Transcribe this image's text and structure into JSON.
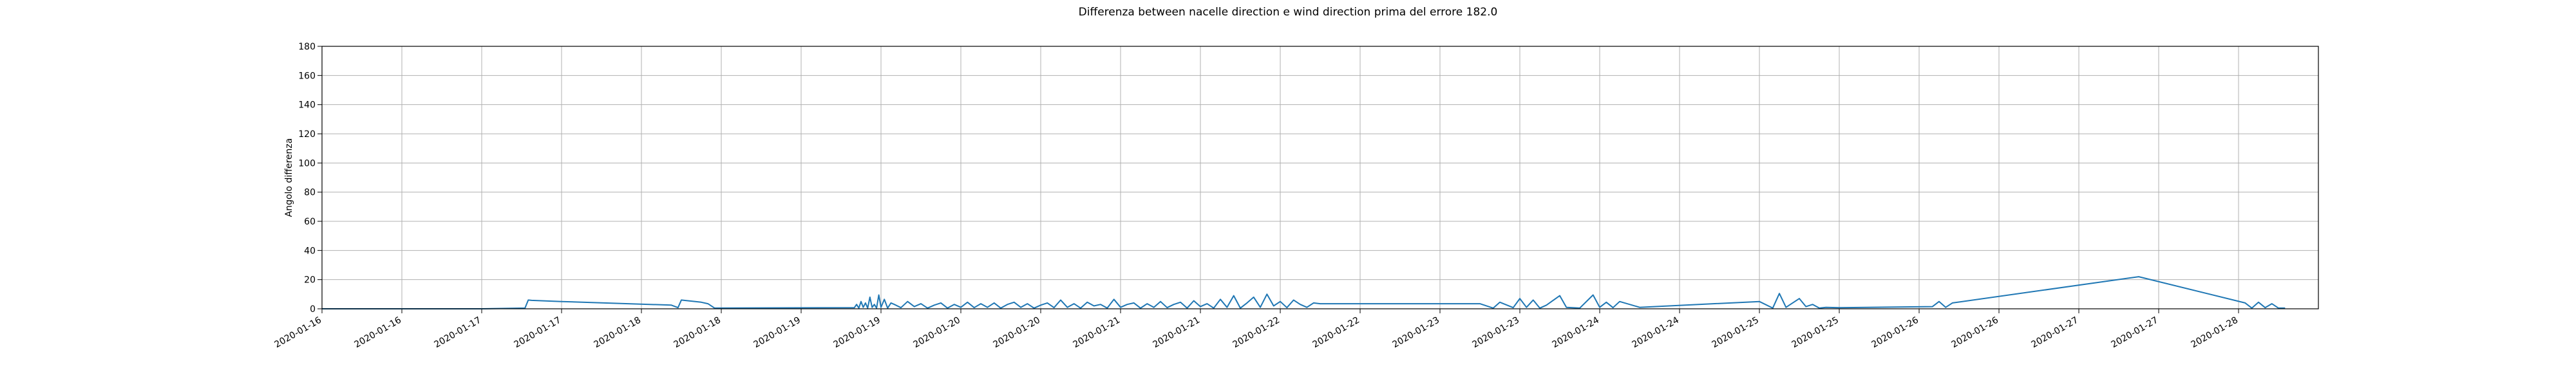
{
  "chart_data": {
    "type": "line",
    "title": "Differenza between nacelle direction e wind direction prima del errore 182.0",
    "xlabel": "",
    "ylabel": "Angolo differenza",
    "ylim": [
      0,
      180
    ],
    "yticks": [
      0,
      20,
      40,
      60,
      80,
      100,
      120,
      140,
      160,
      180
    ],
    "xlim": [
      "2020-01-15 18:00",
      "2020-01-28 06:00"
    ],
    "xticks": [
      {
        "t": "2020-01-15 18:00",
        "label": "2020-01-16"
      },
      {
        "t": "2020-01-16 06:00",
        "label": "2020-01-16"
      },
      {
        "t": "2020-01-16 18:00",
        "label": "2020-01-17"
      },
      {
        "t": "2020-01-17 06:00",
        "label": "2020-01-17"
      },
      {
        "t": "2020-01-17 18:00",
        "label": "2020-01-18"
      },
      {
        "t": "2020-01-18 06:00",
        "label": "2020-01-18"
      },
      {
        "t": "2020-01-18 18:00",
        "label": "2020-01-19"
      },
      {
        "t": "2020-01-19 06:00",
        "label": "2020-01-19"
      },
      {
        "t": "2020-01-19 18:00",
        "label": "2020-01-20"
      },
      {
        "t": "2020-01-20 06:00",
        "label": "2020-01-20"
      },
      {
        "t": "2020-01-20 18:00",
        "label": "2020-01-21"
      },
      {
        "t": "2020-01-21 06:00",
        "label": "2020-01-21"
      },
      {
        "t": "2020-01-21 18:00",
        "label": "2020-01-22"
      },
      {
        "t": "2020-01-22 06:00",
        "label": "2020-01-22"
      },
      {
        "t": "2020-01-22 18:00",
        "label": "2020-01-23"
      },
      {
        "t": "2020-01-23 06:00",
        "label": "2020-01-23"
      },
      {
        "t": "2020-01-23 18:00",
        "label": "2020-01-24"
      },
      {
        "t": "2020-01-24 06:00",
        "label": "2020-01-24"
      },
      {
        "t": "2020-01-24 18:00",
        "label": "2020-01-25"
      },
      {
        "t": "2020-01-25 06:00",
        "label": "2020-01-25"
      },
      {
        "t": "2020-01-25 18:00",
        "label": "2020-01-26"
      },
      {
        "t": "2020-01-26 06:00",
        "label": "2020-01-26"
      },
      {
        "t": "2020-01-26 18:00",
        "label": "2020-01-27"
      },
      {
        "t": "2020-01-27 06:00",
        "label": "2020-01-27"
      },
      {
        "t": "2020-01-27 18:00",
        "label": "2020-01-28"
      }
    ],
    "grid": true,
    "legend": "none",
    "colors": {
      "series": "#1f77b4",
      "grid": "#b0b0b0"
    },
    "series": [
      {
        "x": [
          "2020-01-15 18:00",
          "2020-01-16 18:00",
          "2020-01-17 00:30",
          "2020-01-17 01:00",
          "2020-01-17 01:30",
          "2020-01-17 03:00",
          "2020-01-17 06:00",
          "2020-01-17 22:30",
          "2020-01-17 23:30",
          "2020-01-18 00:00",
          "2020-01-18 01:00",
          "2020-01-18 03:00",
          "2020-01-18 04:00",
          "2020-01-18 05:00",
          "2020-01-19 02:00",
          "2020-01-19 02:20",
          "2020-01-19 02:40",
          "2020-01-19 03:00",
          "2020-01-19 03:20",
          "2020-01-19 03:40",
          "2020-01-19 04:00",
          "2020-01-19 04:20",
          "2020-01-19 04:40",
          "2020-01-19 05:00",
          "2020-01-19 05:20",
          "2020-01-19 05:40",
          "2020-01-19 06:00",
          "2020-01-19 06:30",
          "2020-01-19 07:00",
          "2020-01-19 07:30",
          "2020-01-19 08:00",
          "2020-01-19 09:00",
          "2020-01-19 10:00",
          "2020-01-19 11:00",
          "2020-01-19 12:00",
          "2020-01-19 13:00",
          "2020-01-19 14:00",
          "2020-01-19 15:00",
          "2020-01-19 16:00",
          "2020-01-19 17:00",
          "2020-01-19 18:00",
          "2020-01-19 19:00",
          "2020-01-19 20:00",
          "2020-01-19 21:00",
          "2020-01-19 22:00",
          "2020-01-19 23:00",
          "2020-01-20 00:00",
          "2020-01-20 01:00",
          "2020-01-20 02:00",
          "2020-01-20 03:00",
          "2020-01-20 04:00",
          "2020-01-20 05:00",
          "2020-01-20 06:00",
          "2020-01-20 07:00",
          "2020-01-20 08:00",
          "2020-01-20 09:00",
          "2020-01-20 10:00",
          "2020-01-20 11:00",
          "2020-01-20 12:00",
          "2020-01-20 13:00",
          "2020-01-20 14:00",
          "2020-01-20 15:00",
          "2020-01-20 16:00",
          "2020-01-20 17:00",
          "2020-01-20 18:00",
          "2020-01-20 19:00",
          "2020-01-20 20:00",
          "2020-01-20 21:00",
          "2020-01-20 22:00",
          "2020-01-20 23:00",
          "2020-01-21 00:00",
          "2020-01-21 01:00",
          "2020-01-21 02:00",
          "2020-01-21 03:00",
          "2020-01-21 04:00",
          "2020-01-21 05:00",
          "2020-01-21 06:00",
          "2020-01-21 07:00",
          "2020-01-21 08:00",
          "2020-01-21 09:00",
          "2020-01-21 10:00",
          "2020-01-21 11:00",
          "2020-01-21 12:00",
          "2020-01-21 13:00",
          "2020-01-21 14:00",
          "2020-01-21 15:00",
          "2020-01-21 16:00",
          "2020-01-21 17:00",
          "2020-01-21 18:00",
          "2020-01-21 19:00",
          "2020-01-21 20:00",
          "2020-01-21 21:00",
          "2020-01-21 22:00",
          "2020-01-21 23:00",
          "2020-01-22 00:00",
          "2020-01-22 20:00",
          "2020-01-23 00:00",
          "2020-01-23 02:00",
          "2020-01-23 03:00",
          "2020-01-23 05:00",
          "2020-01-23 06:00",
          "2020-01-23 07:00",
          "2020-01-23 08:00",
          "2020-01-23 09:00",
          "2020-01-23 10:00",
          "2020-01-23 12:00",
          "2020-01-23 13:00",
          "2020-01-23 15:00",
          "2020-01-23 17:00",
          "2020-01-23 18:00",
          "2020-01-23 19:00",
          "2020-01-23 20:00",
          "2020-01-23 21:00",
          "2020-01-24 00:00",
          "2020-01-24 18:00",
          "2020-01-24 20:00",
          "2020-01-24 21:00",
          "2020-01-24 22:00",
          "2020-01-25 00:00",
          "2020-01-25 01:00",
          "2020-01-25 02:00",
          "2020-01-25 03:00",
          "2020-01-25 04:00",
          "2020-01-25 06:00",
          "2020-01-25 20:00",
          "2020-01-25 21:00",
          "2020-01-25 22:00",
          "2020-01-25 23:00",
          "2020-01-27 03:00",
          "2020-01-27 19:00",
          "2020-01-27 20:00",
          "2020-01-27 21:00",
          "2020-01-27 22:00",
          "2020-01-27 23:00",
          "2020-01-28 00:00",
          "2020-01-28 01:00"
        ],
        "y": [
          0,
          0,
          0.5,
          6.0,
          5.8,
          5.5,
          5.0,
          2.5,
          0.8,
          6.0,
          5.5,
          4.5,
          3.5,
          0.5,
          0.8,
          3.0,
          0.5,
          5.0,
          1.0,
          4.0,
          0.5,
          8.0,
          1.0,
          3.0,
          0.5,
          9.5,
          1.0,
          6.5,
          0.5,
          4.0,
          3.0,
          0.8,
          5.0,
          1.5,
          3.5,
          0.5,
          2.5,
          4.0,
          0.5,
          3.0,
          1.0,
          4.5,
          0.8,
          3.5,
          1.0,
          4.0,
          0.5,
          3.0,
          4.5,
          1.0,
          3.5,
          0.5,
          2.5,
          4.0,
          0.8,
          6.0,
          1.0,
          3.5,
          0.5,
          4.5,
          2.0,
          3.0,
          0.5,
          6.5,
          1.0,
          3.0,
          4.0,
          0.5,
          3.5,
          1.0,
          5.0,
          0.8,
          3.0,
          4.5,
          0.5,
          5.5,
          1.5,
          3.5,
          0.5,
          6.5,
          1.0,
          9.0,
          0.5,
          4.0,
          8.0,
          1.0,
          10.0,
          2.0,
          5.0,
          0.8,
          6.0,
          3.0,
          1.0,
          4.0,
          3.5,
          3.5,
          3.5,
          0.5,
          4.5,
          0.8,
          7.0,
          1.0,
          6.0,
          0.5,
          2.5,
          9.0,
          1.0,
          0.5,
          9.5,
          1.0,
          4.5,
          0.8,
          5.0,
          1.0,
          5.0,
          0.5,
          10.5,
          1.0,
          7.0,
          1.5,
          3.0,
          0.5,
          1.0,
          0.8,
          1.5,
          5.0,
          1.0,
          4.0,
          22.0,
          4.0,
          0.5,
          4.5,
          0.8,
          3.5,
          0.5,
          0.5
        ]
      }
    ]
  }
}
